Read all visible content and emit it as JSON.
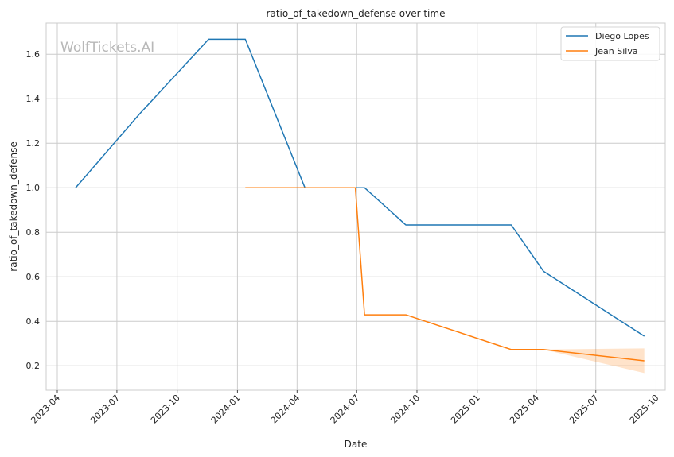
{
  "chart_data": {
    "type": "line",
    "title": "ratio_of_takedown_defense over time",
    "xlabel": "Date",
    "ylabel": "ratio_of_takedown_defense",
    "watermark": "WolfTickets.AI",
    "xlim": [
      "2023-03-15",
      "2025-10-15"
    ],
    "ylim": [
      0.09,
      1.74
    ],
    "x_ticks": [
      "2023-04-01",
      "2023-07-01",
      "2023-10-01",
      "2024-01-01",
      "2024-04-01",
      "2024-07-01",
      "2024-10-01",
      "2025-01-01",
      "2025-04-01",
      "2025-07-01",
      "2025-10-01"
    ],
    "x_tick_labels": [
      "2023-04",
      "2023-07",
      "2023-10",
      "2024-01",
      "2024-04",
      "2024-07",
      "2024-10",
      "2025-01",
      "2025-04",
      "2025-07",
      "2025-10"
    ],
    "y_ticks": [
      0.2,
      0.4,
      0.6,
      0.8,
      1.0,
      1.2,
      1.4,
      1.6
    ],
    "y_tick_labels": [
      "0.2",
      "0.4",
      "0.6",
      "0.8",
      "1.0",
      "1.2",
      "1.4",
      "1.6"
    ],
    "grid": true,
    "legend_position": "top-right",
    "series": [
      {
        "name": "Diego Lopes",
        "color": "#1f77b4",
        "points": [
          {
            "x": "2023-04-29",
            "y": 1.0
          },
          {
            "x": "2023-08-05",
            "y": 1.333
          },
          {
            "x": "2023-11-18",
            "y": 1.667
          },
          {
            "x": "2024-01-13",
            "y": 1.667
          },
          {
            "x": "2024-04-13",
            "y": 1.0
          },
          {
            "x": "2024-07-13",
            "y": 1.0
          },
          {
            "x": "2024-09-14",
            "y": 0.833
          },
          {
            "x": "2025-02-22",
            "y": 0.833
          },
          {
            "x": "2025-04-12",
            "y": 0.625
          },
          {
            "x": "2025-09-13",
            "y": 0.333
          }
        ]
      },
      {
        "name": "Jean Silva",
        "color": "#ff7f0e",
        "points": [
          {
            "x": "2024-01-13",
            "y": 1.0
          },
          {
            "x": "2024-06-29",
            "y": 1.0
          },
          {
            "x": "2024-07-13",
            "y": 0.429
          },
          {
            "x": "2024-09-14",
            "y": 0.429
          },
          {
            "x": "2025-02-22",
            "y": 0.273
          },
          {
            "x": "2025-04-12",
            "y": 0.273
          },
          {
            "x": "2025-09-13",
            "y": 0.222
          }
        ],
        "band": [
          {
            "x": "2025-04-12",
            "lo": 0.273,
            "hi": 0.273
          },
          {
            "x": "2025-09-13",
            "lo": 0.167,
            "hi": 0.278
          }
        ]
      }
    ]
  }
}
